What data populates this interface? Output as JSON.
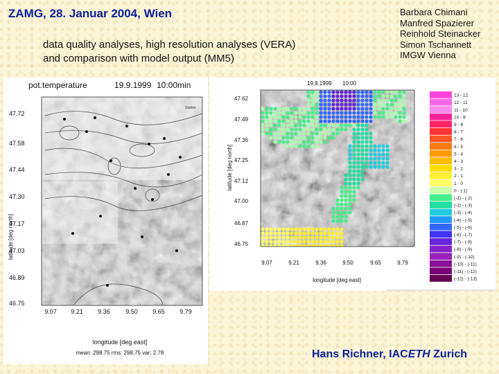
{
  "title": "ZAMG, 28. Januar 2004, Wien",
  "subtitle_lines": [
    "data quality analyses, high resolution analyses (VERA)",
    "and comparison with model output (MM5)"
  ],
  "authors": [
    "Barbara Chimani",
    "Manfred Spazierer",
    "Reinhold Steinacker",
    "Simon Tschannett",
    "IMGW Vienna"
  ],
  "footer": {
    "prefix": "Hans Richner, IAC",
    "eth": "ETH",
    "suffix": " Zurich"
  },
  "left_map": {
    "title": "pot.temperature",
    "date": "19.9.1999",
    "time": "10:00min",
    "xlabel": "longitude [deg east]",
    "ylabel": "latitude [deg north]",
    "x_ticks": [
      "9.07",
      "9.21",
      "9.36",
      "9.50",
      "9.65",
      "9.79"
    ],
    "y_ticks": [
      "47.72",
      "47.58",
      "47.44",
      "47.30",
      "47.17",
      "47.03",
      "46.89",
      "46.75"
    ],
    "stats": "mean: 298.75    rms: 298.75    var: 2.78",
    "legend_tag": "Station"
  },
  "right_map": {
    "header_date": "19.9.1999",
    "header_time": "10:00",
    "xlabel": "longitude [deg east]",
    "ylabel": "latitude [deg north]",
    "x_ticks": [
      "9.07",
      "9.21",
      "9.36",
      "9.50",
      "9.65",
      "9.79"
    ],
    "y_ticks": [
      "47.62",
      "47.49",
      "47.36",
      "47.25",
      "47.12",
      "47.00",
      "46.87",
      "46.75"
    ]
  },
  "legend": [
    {
      "label": "13 - 12",
      "color": "#ff44dd"
    },
    {
      "label": "12 - 11",
      "color": "#ff66e6"
    },
    {
      "label": "11 - 10",
      "color": "#ff88ee"
    },
    {
      "label": "10 - 9",
      "color": "#ff2299"
    },
    {
      "label": "9 - 8",
      "color": "#ff2266"
    },
    {
      "label": "8 - 7",
      "color": "#ff3333"
    },
    {
      "label": "7 - 6",
      "color": "#ff5522"
    },
    {
      "label": "6 - 5",
      "color": "#ff7711"
    },
    {
      "label": "5 - 4",
      "color": "#ff9900"
    },
    {
      "label": "4 - 3",
      "color": "#ffbb00"
    },
    {
      "label": "3 - 2",
      "color": "#ffdd00"
    },
    {
      "label": "2 - 1",
      "color": "#ffee33"
    },
    {
      "label": "1 - 0",
      "color": "#ffff66"
    },
    {
      "label": "0 - (-1)",
      "color": "#ccffaa"
    },
    {
      "label": "(-1) - (-2)",
      "color": "#44ee88"
    },
    {
      "label": "(-2) - (-3)",
      "color": "#22dda0"
    },
    {
      "label": "(-3) - (-4)",
      "color": "#22ccdd"
    },
    {
      "label": "(-4) - (-5)",
      "color": "#2299ff"
    },
    {
      "label": "(-5) - (-6)",
      "color": "#3366ff"
    },
    {
      "label": "(-6) - (-7)",
      "color": "#4433ee"
    },
    {
      "label": "(-7) - (-8)",
      "color": "#6622dd"
    },
    {
      "label": "(-8) - (-9)",
      "color": "#8822cc"
    },
    {
      "label": "(-9) - (-10)",
      "color": "#9922bb"
    },
    {
      "label": "(-10) - (-11)",
      "color": "#881199"
    },
    {
      "label": "(-11) - (-12)",
      "color": "#770077"
    },
    {
      "label": "(-12) - (-13)",
      "color": "#660055"
    }
  ]
}
